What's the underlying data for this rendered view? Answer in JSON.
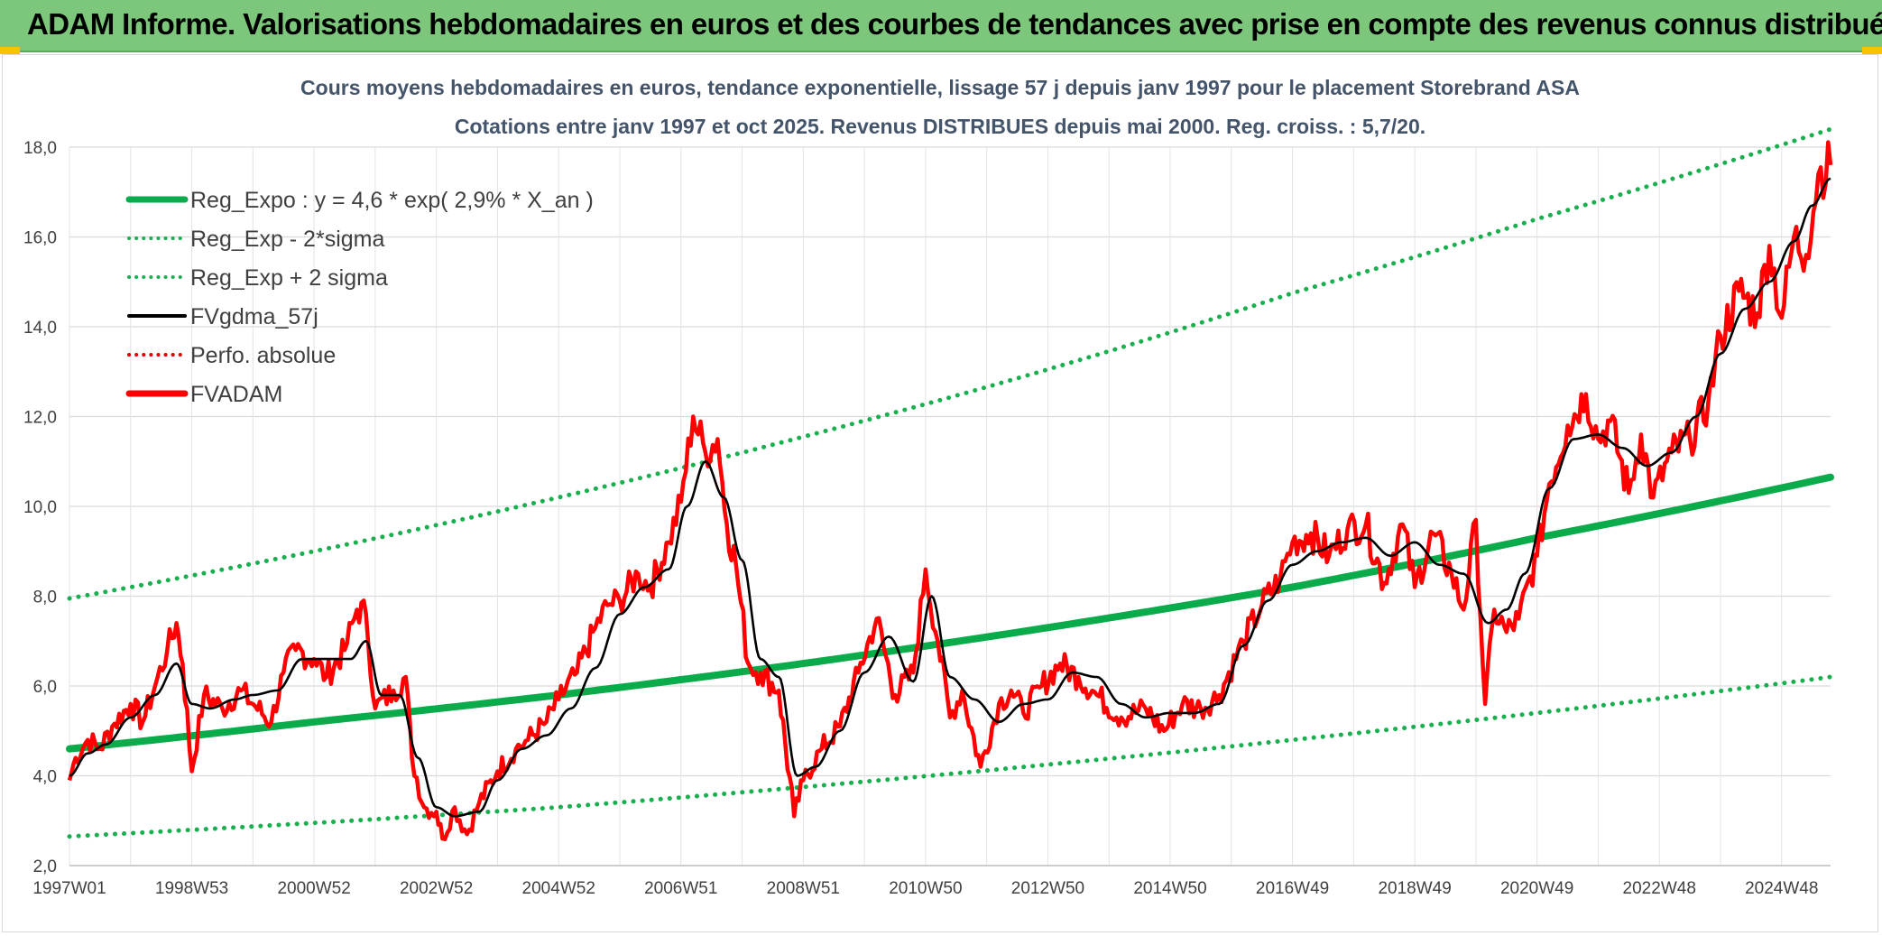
{
  "banner": {
    "title": "ADAM Informe. Valorisations hebdomadaires en euros et des courbes de tendances avec prise en compte des revenus connus distribués"
  },
  "colors": {
    "banner_bg": "#7dc77d",
    "accent_corner": "#f5c400",
    "reg_expo": "#0aab4a",
    "sigma_bands": "#18b04f",
    "fvgdma": "#000000",
    "fvadam": "#ff0000",
    "perfo_absolue": "#e00000",
    "title_text": "#44546a"
  },
  "chart_data": {
    "type": "line",
    "title": "Cours moyens hebdomadaires en euros, tendance exponentielle, lissage 57 j depuis janv 1997 pour le placement Storebrand ASA",
    "subtitle": "Cotations entre janv 1997 et oct 2025. Revenus DISTRIBUES depuis mai 2000. Reg. croiss. : 5,7/20.",
    "xlabel": "",
    "ylabel": "",
    "ylim": [
      2.0,
      18.0
    ],
    "xlim": [
      1997.0,
      2025.8
    ],
    "grid": true,
    "legend_position": "top-left",
    "y_ticks": [
      "2,0",
      "4,0",
      "6,0",
      "8,0",
      "10,0",
      "12,0",
      "14,0",
      "16,0",
      "18,0"
    ],
    "y_tick_values": [
      2,
      4,
      6,
      8,
      10,
      12,
      14,
      16,
      18
    ],
    "x_ticks": [
      "1997W01",
      "1998W53",
      "2000W52",
      "2002W52",
      "2004W52",
      "2006W51",
      "2008W51",
      "2010W50",
      "2012W50",
      "2014W50",
      "2016W49",
      "2018W49",
      "2020W49",
      "2022W48",
      "2024W48"
    ],
    "x_tick_values": [
      1997.0,
      1999.0,
      2001.0,
      2003.0,
      2005.0,
      2007.0,
      2009.0,
      2011.0,
      2013.0,
      2015.0,
      2017.0,
      2019.0,
      2021.0,
      2023.0,
      2025.0
    ],
    "legend": [
      {
        "label": "Reg_Expo : y = 4,6 * exp( 2,9% *  X_an )",
        "style": "solid-thick",
        "color": "#0aab4a"
      },
      {
        "label": "Reg_Exp - 2*sigma",
        "style": "dotted",
        "color": "#18b04f"
      },
      {
        "label": "Reg_Exp + 2 sigma",
        "style": "dotted",
        "color": "#18b04f"
      },
      {
        "label": "FVgdma_57j",
        "style": "solid",
        "color": "#000000"
      },
      {
        "label": "Perfo. absolue",
        "style": "dotted",
        "color": "#e00000"
      },
      {
        "label": "FVADAM",
        "style": "solid-thick",
        "color": "#ff0000"
      }
    ],
    "series": [
      {
        "name": "Reg_Expo : y = 4,6 * exp( 2,9% *  X_an )",
        "kind": "curve",
        "x": [
          1997.0,
          2001.0,
          2005.0,
          2009.0,
          2013.0,
          2017.0,
          2021.0,
          2025.8
        ],
        "y": [
          4.6,
          5.2,
          5.8,
          6.5,
          7.3,
          8.2,
          9.3,
          10.65
        ]
      },
      {
        "name": "Reg_Exp - 2*sigma",
        "kind": "curve",
        "x": [
          1997.0,
          2001.0,
          2005.0,
          2009.0,
          2013.0,
          2017.0,
          2021.0,
          2025.8
        ],
        "y": [
          2.65,
          2.95,
          3.3,
          3.75,
          4.25,
          4.8,
          5.4,
          6.2
        ]
      },
      {
        "name": "Reg_Exp + 2 sigma",
        "kind": "curve",
        "x": [
          1997.0,
          2001.0,
          2005.0,
          2009.0,
          2013.0,
          2017.0,
          2021.0,
          2025.8
        ],
        "y": [
          7.95,
          9.0,
          10.2,
          11.55,
          13.05,
          14.75,
          16.4,
          18.4
        ]
      },
      {
        "name": "FVADAM",
        "kind": "price",
        "x": [
          1997.0,
          1997.1,
          1997.3,
          1997.5,
          1997.7,
          1998.0,
          1998.2,
          1998.4,
          1998.6,
          1998.75,
          1998.85,
          1999.0,
          1999.2,
          1999.5,
          1999.8,
          2000.0,
          2000.3,
          2000.5,
          2000.7,
          2001.0,
          2001.2,
          2001.5,
          2001.7,
          2001.85,
          2002.0,
          2002.3,
          2002.5,
          2002.6,
          2002.8,
          2003.0,
          2003.1,
          2003.3,
          2003.5,
          2003.7,
          2004.0,
          2004.3,
          2004.5,
          2004.8,
          2005.0,
          2005.3,
          2005.6,
          2005.8,
          2006.0,
          2006.3,
          2006.5,
          2006.8,
          2007.0,
          2007.2,
          2007.4,
          2007.6,
          2007.75,
          2007.9,
          2008.1,
          2008.3,
          2008.6,
          2008.85,
          2009.0,
          2009.3,
          2009.6,
          2009.9,
          2010.2,
          2010.5,
          2010.8,
          2011.0,
          2011.2,
          2011.4,
          2011.6,
          2011.9,
          2012.2,
          2012.4,
          2012.6,
          2012.9,
          2013.2,
          2013.5,
          2013.8,
          2014.2,
          2014.6,
          2014.9,
          2015.2,
          2015.5,
          2015.8,
          2016.2,
          2016.5,
          2016.8,
          2017.0,
          2017.3,
          2017.6,
          2017.9,
          2018.2,
          2018.5,
          2018.8,
          2019.0,
          2019.3,
          2019.6,
          2019.8,
          2020.0,
          2020.15,
          2020.3,
          2020.5,
          2020.7,
          2021.0,
          2021.2,
          2021.5,
          2021.8,
          2022.0,
          2022.2,
          2022.5,
          2022.7,
          2022.9,
          2023.2,
          2023.5,
          2023.8,
          2024.0,
          2024.3,
          2024.6,
          2024.8,
          2025.0,
          2025.2,
          2025.4,
          2025.6,
          2025.8
        ],
        "y": [
          3.9,
          4.4,
          4.8,
          4.6,
          5.1,
          5.6,
          5.2,
          6.0,
          6.8,
          7.4,
          6.5,
          4.1,
          5.8,
          5.5,
          5.9,
          5.6,
          5.2,
          6.3,
          6.8,
          6.6,
          6.2,
          6.8,
          7.7,
          7.6,
          5.5,
          5.9,
          6.2,
          4.4,
          3.3,
          3.2,
          2.6,
          3.3,
          2.7,
          3.4,
          4.1,
          4.6,
          4.8,
          5.2,
          5.7,
          6.3,
          7.3,
          7.8,
          7.9,
          8.5,
          8.2,
          9.2,
          10.1,
          12.0,
          11.2,
          11.5,
          9.6,
          8.7,
          6.5,
          6.3,
          5.9,
          3.1,
          3.9,
          4.6,
          5.1,
          6.3,
          7.5,
          5.8,
          6.3,
          8.6,
          7.0,
          5.3,
          5.9,
          4.2,
          5.6,
          5.9,
          5.4,
          6.0,
          6.5,
          6.2,
          5.8,
          5.3,
          5.5,
          5.0,
          5.6,
          5.5,
          5.8,
          7.0,
          7.8,
          8.4,
          9.2,
          9.4,
          8.9,
          9.5,
          9.6,
          8.3,
          9.6,
          8.2,
          9.4,
          8.5,
          7.7,
          9.7,
          5.6,
          7.7,
          7.2,
          7.5,
          8.9,
          10.5,
          11.8,
          12.5,
          11.5,
          11.9,
          10.3,
          11.6,
          10.2,
          11.2,
          11.5,
          12.3,
          13.8,
          14.8,
          14.3,
          15.8,
          14.2,
          16.0,
          15.6,
          17.4,
          17.6
        ]
      },
      {
        "name": "FVgdma_57j",
        "kind": "smooth",
        "x": [
          1997.0,
          1997.3,
          1997.6,
          1998.0,
          1998.4,
          1998.75,
          1999.0,
          1999.3,
          1999.7,
          2000.0,
          2000.4,
          2000.8,
          2001.2,
          2001.6,
          2001.85,
          2002.1,
          2002.4,
          2002.7,
          2003.0,
          2003.3,
          2003.7,
          2004.0,
          2004.4,
          2004.8,
          2005.2,
          2005.6,
          2006.0,
          2006.4,
          2006.8,
          2007.1,
          2007.4,
          2007.7,
          2008.0,
          2008.3,
          2008.6,
          2008.9,
          2009.2,
          2009.6,
          2010.0,
          2010.4,
          2010.8,
          2011.1,
          2011.4,
          2011.8,
          2012.2,
          2012.6,
          2013.0,
          2013.4,
          2013.8,
          2014.2,
          2014.6,
          2015.0,
          2015.4,
          2015.8,
          2016.2,
          2016.6,
          2017.0,
          2017.4,
          2017.8,
          2018.2,
          2018.6,
          2019.0,
          2019.4,
          2019.8,
          2020.2,
          2020.5,
          2020.8,
          2021.2,
          2021.6,
          2022.0,
          2022.4,
          2022.8,
          2023.2,
          2023.6,
          2024.0,
          2024.4,
          2024.8,
          2025.2,
          2025.5,
          2025.8
        ],
        "y": [
          4.0,
          4.5,
          4.7,
          5.3,
          5.8,
          6.5,
          5.6,
          5.5,
          5.7,
          5.8,
          5.9,
          6.6,
          6.6,
          6.6,
          7.0,
          5.8,
          5.8,
          4.4,
          3.3,
          3.1,
          3.2,
          3.9,
          4.6,
          4.9,
          5.5,
          6.4,
          7.6,
          8.2,
          8.6,
          10.0,
          11.0,
          10.2,
          8.8,
          6.6,
          6.2,
          4.0,
          4.2,
          5.0,
          6.3,
          7.1,
          6.1,
          8.0,
          6.2,
          5.7,
          5.2,
          5.6,
          5.7,
          6.3,
          6.2,
          5.6,
          5.3,
          5.4,
          5.4,
          5.6,
          6.9,
          7.9,
          8.7,
          9.0,
          9.2,
          9.3,
          8.9,
          9.2,
          8.7,
          8.5,
          7.4,
          7.7,
          8.5,
          10.4,
          11.5,
          11.6,
          11.3,
          10.9,
          11.2,
          12.0,
          13.4,
          14.4,
          15.0,
          15.9,
          16.7,
          17.3
        ]
      }
    ]
  }
}
